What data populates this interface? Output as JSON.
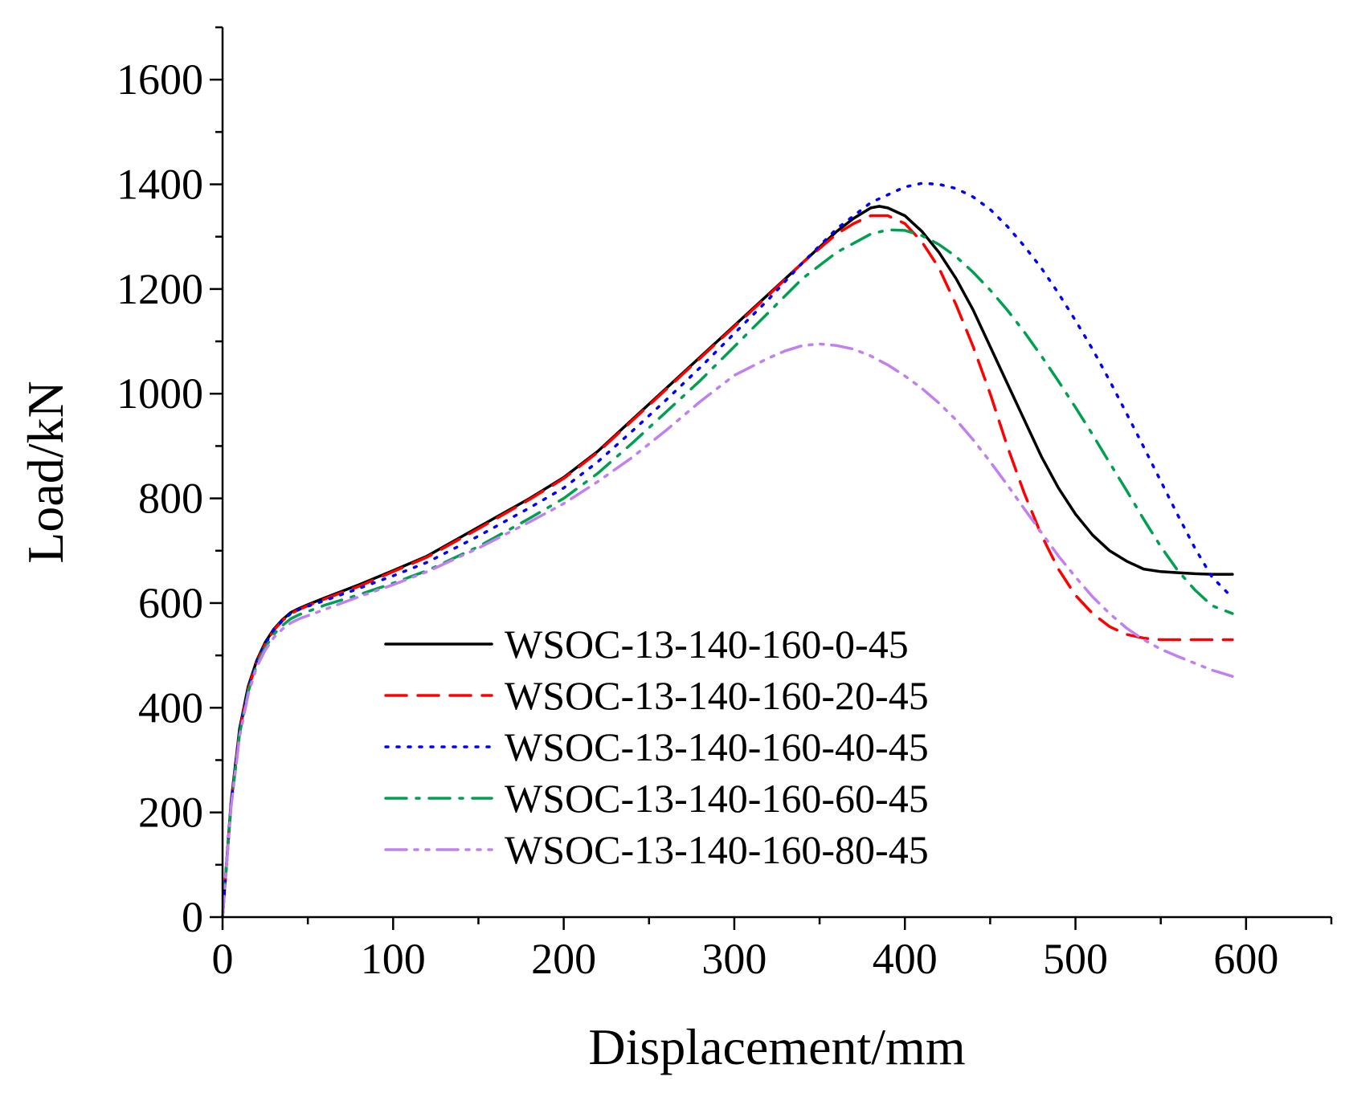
{
  "chart_data": {
    "type": "line",
    "title": "",
    "xlabel": "Displacement/mm",
    "ylabel": "Load/kN",
    "xlim": [
      0,
      650
    ],
    "ylim": [
      0,
      1700
    ],
    "xticks": [
      0,
      100,
      200,
      300,
      400,
      500,
      600
    ],
    "yticks": [
      0,
      200,
      400,
      600,
      800,
      1000,
      1200,
      1400,
      1600
    ],
    "grid": false,
    "legend_position": "bottom-center",
    "series": [
      {
        "name": "WSOC-13-140-160-0-45",
        "color": "#000000",
        "dash": "solid",
        "x": [
          0,
          5,
          10,
          15,
          20,
          25,
          30,
          35,
          40,
          45,
          50,
          60,
          80,
          100,
          120,
          150,
          180,
          200,
          220,
          240,
          260,
          280,
          300,
          320,
          340,
          360,
          370,
          380,
          385,
          390,
          400,
          410,
          420,
          430,
          440,
          450,
          460,
          470,
          480,
          490,
          500,
          510,
          520,
          530,
          540,
          550,
          560,
          570,
          580,
          592
        ],
        "y": [
          0,
          220,
          360,
          440,
          490,
          525,
          550,
          568,
          582,
          590,
          597,
          610,
          635,
          662,
          690,
          745,
          800,
          840,
          890,
          950,
          1010,
          1070,
          1130,
          1190,
          1250,
          1310,
          1335,
          1355,
          1358,
          1355,
          1340,
          1310,
          1270,
          1220,
          1160,
          1090,
          1020,
          950,
          880,
          820,
          770,
          730,
          700,
          680,
          665,
          660,
          658,
          656,
          655,
          655
        ]
      },
      {
        "name": "WSOC-13-140-160-20-45",
        "color": "#ff0000",
        "dash": "dashed",
        "x": [
          0,
          5,
          10,
          15,
          20,
          25,
          30,
          35,
          40,
          45,
          50,
          60,
          80,
          100,
          120,
          150,
          180,
          200,
          220,
          240,
          260,
          280,
          300,
          320,
          340,
          360,
          370,
          380,
          390,
          400,
          410,
          420,
          430,
          440,
          450,
          460,
          470,
          480,
          490,
          500,
          510,
          520,
          530,
          540,
          550,
          560,
          570,
          580,
          592
        ],
        "y": [
          0,
          215,
          355,
          435,
          487,
          522,
          548,
          566,
          580,
          588,
          595,
          608,
          632,
          660,
          688,
          742,
          798,
          838,
          888,
          948,
          1008,
          1068,
          1128,
          1188,
          1250,
          1305,
          1325,
          1340,
          1340,
          1325,
          1290,
          1240,
          1170,
          1090,
          1000,
          900,
          810,
          730,
          665,
          615,
          580,
          555,
          540,
          533,
          530,
          530,
          530,
          530,
          530
        ]
      },
      {
        "name": "WSOC-13-140-160-40-45",
        "color": "#0000ff",
        "dash": "dotted",
        "x": [
          0,
          5,
          10,
          15,
          20,
          25,
          30,
          35,
          40,
          45,
          50,
          60,
          80,
          100,
          120,
          150,
          180,
          200,
          220,
          240,
          260,
          280,
          300,
          320,
          340,
          360,
          380,
          400,
          410,
          420,
          430,
          440,
          450,
          460,
          470,
          480,
          490,
          500,
          510,
          520,
          530,
          540,
          550,
          560,
          570,
          580,
          592
        ],
        "y": [
          0,
          215,
          355,
          435,
          487,
          522,
          548,
          566,
          580,
          588,
          594,
          605,
          628,
          652,
          678,
          728,
          782,
          820,
          870,
          928,
          988,
          1050,
          1115,
          1180,
          1250,
          1315,
          1365,
          1395,
          1402,
          1400,
          1392,
          1376,
          1352,
          1320,
          1282,
          1240,
          1192,
          1140,
          1085,
          1025,
          962,
          898,
          833,
          768,
          705,
          650,
          610
        ]
      },
      {
        "name": "WSOC-13-140-160-60-45",
        "color": "#00a050",
        "dash": "dashdot",
        "x": [
          0,
          5,
          10,
          15,
          20,
          25,
          30,
          35,
          40,
          45,
          50,
          60,
          80,
          100,
          120,
          150,
          180,
          200,
          220,
          240,
          260,
          280,
          300,
          320,
          340,
          360,
          380,
          390,
          400,
          410,
          420,
          430,
          440,
          450,
          460,
          470,
          480,
          490,
          500,
          510,
          520,
          530,
          540,
          550,
          560,
          570,
          580,
          592
        ],
        "y": [
          0,
          212,
          350,
          430,
          482,
          515,
          540,
          557,
          570,
          578,
          584,
          596,
          616,
          638,
          662,
          708,
          762,
          800,
          848,
          905,
          965,
          1025,
          1090,
          1155,
          1220,
          1270,
          1305,
          1313,
          1312,
          1302,
          1285,
          1262,
          1232,
          1198,
          1160,
          1118,
          1072,
          1024,
          974,
          922,
          868,
          815,
          760,
          708,
          662,
          625,
          595,
          580
        ]
      },
      {
        "name": "WSOC-13-140-160-80-45",
        "color": "#c080f0",
        "dash": "dashdotdot",
        "x": [
          0,
          5,
          10,
          15,
          20,
          25,
          30,
          35,
          40,
          45,
          50,
          60,
          80,
          100,
          120,
          150,
          180,
          200,
          220,
          240,
          260,
          280,
          300,
          320,
          330,
          340,
          350,
          360,
          370,
          380,
          390,
          400,
          410,
          420,
          430,
          440,
          450,
          460,
          470,
          480,
          490,
          500,
          510,
          520,
          530,
          540,
          550,
          560,
          570,
          580,
          592
        ],
        "y": [
          0,
          210,
          345,
          425,
          478,
          510,
          534,
          550,
          562,
          570,
          576,
          588,
          612,
          635,
          660,
          705,
          755,
          790,
          832,
          878,
          930,
          985,
          1035,
          1068,
          1082,
          1092,
          1095,
          1092,
          1085,
          1072,
          1055,
          1034,
          1010,
          982,
          950,
          912,
          870,
          826,
          780,
          735,
          690,
          650,
          612,
          580,
          552,
          530,
          512,
          498,
          485,
          472,
          460
        ]
      }
    ]
  }
}
